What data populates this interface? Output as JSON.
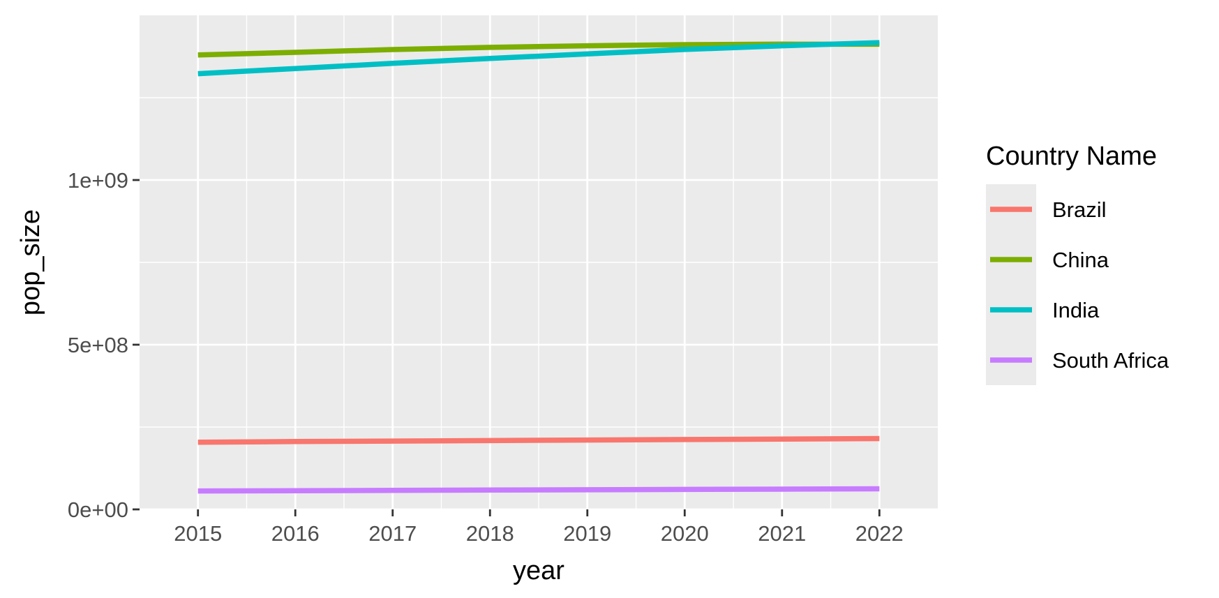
{
  "chart_data": {
    "type": "line",
    "xlabel": "year",
    "ylabel": "pop_size",
    "x": [
      2015,
      2016,
      2017,
      2018,
      2019,
      2020,
      2021,
      2022
    ],
    "xlim": [
      2014.4,
      2022.6
    ],
    "ylim": [
      0,
      1500000000
    ],
    "x_ticks": [
      2015,
      2016,
      2017,
      2018,
      2019,
      2020,
      2021,
      2022
    ],
    "x_tick_labels": [
      "2015",
      "2016",
      "2017",
      "2018",
      "2019",
      "2020",
      "2021",
      "2022"
    ],
    "y_ticks": [
      0,
      500000000,
      1000000000
    ],
    "y_tick_labels": [
      "0e+00",
      "5e+08",
      "1e+09"
    ],
    "y_minor_ticks": [
      250000000,
      750000000,
      1250000000
    ],
    "grid": true,
    "legend": {
      "title": "Country Name",
      "position": "right"
    },
    "series": [
      {
        "name": "Brazil",
        "color": "#F8766D",
        "values": [
          204000000,
          206000000,
          207500000,
          209000000,
          210500000,
          212000000,
          213500000,
          215000000
        ]
      },
      {
        "name": "China",
        "color": "#7CAE00",
        "values": [
          1379900000,
          1387800000,
          1396200000,
          1402800000,
          1407700000,
          1411100000,
          1412400000,
          1412200000
        ]
      },
      {
        "name": "India",
        "color": "#00BFC4",
        "values": [
          1322900000,
          1338600000,
          1354200000,
          1369000000,
          1383100000,
          1396400000,
          1407600000,
          1417200000
        ]
      },
      {
        "name": "South Africa",
        "color": "#C77CFF",
        "values": [
          55900000,
          56700000,
          57600000,
          58600000,
          59600000,
          60600000,
          61500000,
          62400000
        ]
      }
    ]
  }
}
